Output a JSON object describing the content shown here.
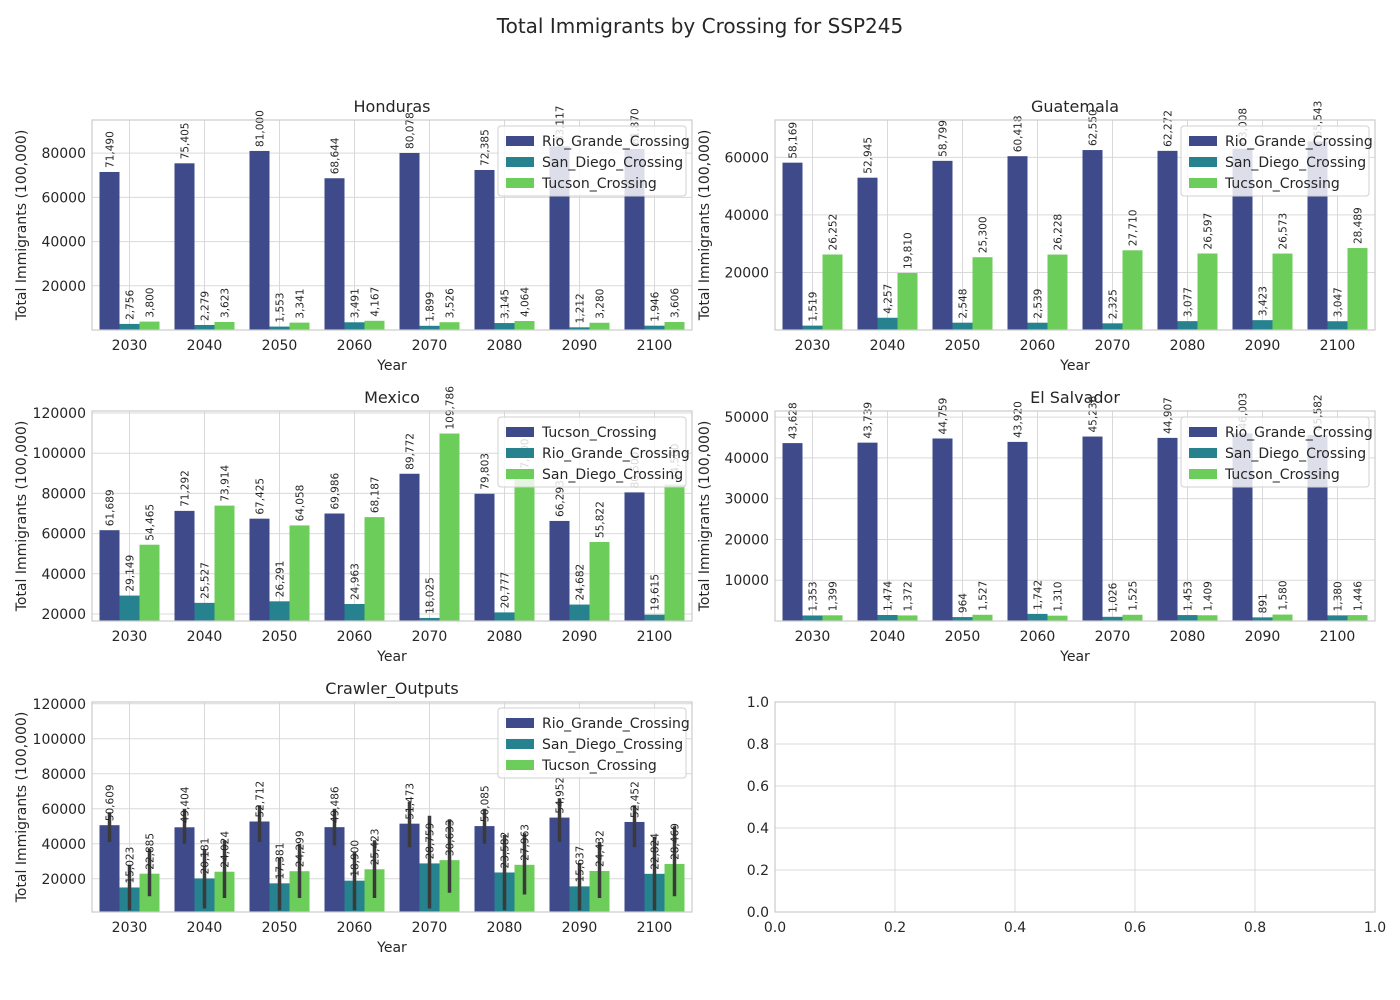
{
  "title": "Total Immigrants by Crossing for SSP245",
  "colors": {
    "navy": "#3e4a89",
    "teal": "#26828e",
    "green": "#6ccd5a",
    "grid": "#d9d9d9",
    "spine": "#cccccc",
    "text": "#262626",
    "errbar": "#3a3a3a"
  },
  "chart_data": [
    {
      "type": "bar",
      "title": "Honduras",
      "xlabel": "Year",
      "ylabel": "Total Immigrants (100,000)",
      "ylim": [
        0,
        95000
      ],
      "yticks": [
        20000,
        40000,
        60000,
        80000
      ],
      "legend": "top-right",
      "categories": [
        "2030",
        "2040",
        "2050",
        "2060",
        "2070",
        "2080",
        "2090",
        "2100"
      ],
      "series": [
        {
          "name": "Rio_Grande_Crossing",
          "color": "#3e4a89",
          "values": [
            71490,
            75405,
            81000,
            68644,
            80078,
            72385,
            83117,
            81870
          ],
          "labels": [
            "71,490",
            "75,405",
            "81,000",
            "68,644",
            "80,078",
            "72,385",
            "83,117",
            "81,870"
          ]
        },
        {
          "name": "San_Diego_Crossing",
          "color": "#26828e",
          "values": [
            2756,
            2279,
            1553,
            3491,
            1899,
            3145,
            1212,
            1946
          ],
          "labels": [
            "2,756",
            "2,279",
            "1,553",
            "3,491",
            "1,899",
            "3,145",
            "1,212",
            "1,946"
          ]
        },
        {
          "name": "Tucson_Crossing",
          "color": "#6ccd5a",
          "values": [
            3800,
            3623,
            3341,
            4167,
            3526,
            4064,
            3280,
            3606
          ],
          "labels": [
            "3,800",
            "3,623",
            "3,341",
            "4,167",
            "3,526",
            "4,064",
            "3,280",
            "3,606"
          ]
        }
      ]
    },
    {
      "type": "bar",
      "title": "Guatemala",
      "xlabel": "Year",
      "ylabel": "Total Immigrants (100,000)",
      "ylim": [
        0,
        73000
      ],
      "yticks": [
        20000,
        40000,
        60000
      ],
      "legend": "top-right",
      "categories": [
        "2030",
        "2040",
        "2050",
        "2060",
        "2070",
        "2080",
        "2090",
        "2100"
      ],
      "series": [
        {
          "name": "Rio_Grande_Crossing",
          "color": "#3e4a89",
          "values": [
            58169,
            52945,
            58799,
            60418,
            62550,
            62272,
            63008,
            65543
          ],
          "labels": [
            "58,169",
            "52,945",
            "58,799",
            "60,418",
            "62,550",
            "62,272",
            "63,008",
            "65,543"
          ]
        },
        {
          "name": "San_Diego_Crossing",
          "color": "#26828e",
          "values": [
            1519,
            4257,
            2548,
            2539,
            2325,
            3077,
            3423,
            3047
          ],
          "labels": [
            "1,519",
            "4,257",
            "2,548",
            "2,539",
            "2,325",
            "3,077",
            "3,423",
            "3,047"
          ]
        },
        {
          "name": "Tucson_Crossing",
          "color": "#6ccd5a",
          "values": [
            26252,
            19810,
            25300,
            26228,
            27710,
            26597,
            26573,
            28489
          ],
          "labels": [
            "26,252",
            "19,810",
            "25,300",
            "26,228",
            "27,710",
            "26,597",
            "26,573",
            "28,489"
          ]
        }
      ]
    },
    {
      "type": "bar",
      "title": "Mexico",
      "xlabel": "Year",
      "ylabel": "Total Immigrants (100,000)",
      "ylim": [
        16500,
        121000
      ],
      "yticks": [
        20000,
        40000,
        60000,
        80000,
        100000,
        120000
      ],
      "legend": "top-right",
      "categories": [
        "2030",
        "2040",
        "2050",
        "2060",
        "2070",
        "2080",
        "2090",
        "2100"
      ],
      "series": [
        {
          "name": "Tucson_Crossing",
          "color": "#3e4a89",
          "values": [
            61689,
            71292,
            67425,
            69986,
            89772,
            79803,
            66293,
            80500
          ],
          "labels": [
            "61,689",
            "71,292",
            "67,425",
            "69,986",
            "89,772",
            "79,803",
            "66,293",
            "80,500"
          ]
        },
        {
          "name": "Rio_Grande_Crossing",
          "color": "#26828e",
          "values": [
            29149,
            25527,
            26291,
            24963,
            18025,
            20777,
            24682,
            19615
          ],
          "labels": [
            "29,149",
            "25,527",
            "26,291",
            "24,963",
            "18,025",
            "20,777",
            "24,682",
            "19,615"
          ]
        },
        {
          "name": "San_Diego_Crossing",
          "color": "#6ccd5a",
          "values": [
            54465,
            73914,
            64058,
            68187,
            109786,
            87000,
            55822,
            84500
          ],
          "labels": [
            "54,465",
            "73,914",
            "64,058",
            "68,187",
            "109,786",
            "87,000",
            "55,822",
            "84,500"
          ]
        }
      ]
    },
    {
      "type": "bar",
      "title": "El Salvador",
      "xlabel": "Year",
      "ylabel": "Total Immigrants (100,000)",
      "ylim": [
        0,
        51500
      ],
      "yticks": [
        10000,
        20000,
        30000,
        40000,
        50000
      ],
      "legend": "top-right",
      "categories": [
        "2030",
        "2040",
        "2050",
        "2060",
        "2070",
        "2080",
        "2090",
        "2100"
      ],
      "series": [
        {
          "name": "Rio_Grande_Crossing",
          "color": "#3e4a89",
          "values": [
            43628,
            43739,
            44759,
            43920,
            45236,
            44907,
            46003,
            45582
          ],
          "labels": [
            "43,628",
            "43,739",
            "44,759",
            "43,920",
            "45,236",
            "44,907",
            "46,003",
            "45,582"
          ]
        },
        {
          "name": "San_Diego_Crossing",
          "color": "#26828e",
          "values": [
            1353,
            1474,
            964,
            1742,
            1026,
            1453,
            891,
            1380
          ],
          "labels": [
            "1,353",
            "1,474",
            "964",
            "1,742",
            "1,026",
            "1,453",
            "891",
            "1,380"
          ]
        },
        {
          "name": "Tucson_Crossing",
          "color": "#6ccd5a",
          "values": [
            1399,
            1372,
            1527,
            1310,
            1525,
            1409,
            1580,
            1446
          ],
          "labels": [
            "1,399",
            "1,372",
            "1,527",
            "1,310",
            "1,525",
            "1,409",
            "1,580",
            "1,446"
          ]
        }
      ]
    },
    {
      "type": "bar",
      "title": "Crawler_Outputs",
      "xlabel": "Year",
      "ylabel": "Total Immigrants (100,000)",
      "ylim": [
        1000,
        121000
      ],
      "yticks": [
        20000,
        40000,
        60000,
        80000,
        100000,
        120000
      ],
      "legend": "top-right",
      "error_bars": true,
      "categories": [
        "2030",
        "2040",
        "2050",
        "2060",
        "2070",
        "2080",
        "2090",
        "2100"
      ],
      "series": [
        {
          "name": "Rio_Grande_Crossing",
          "color": "#3e4a89",
          "values": [
            50609,
            49404,
            52712,
            49486,
            51473,
            50085,
            54952,
            52452
          ],
          "labels": [
            "50,609",
            "49,404",
            "52,712",
            "49,486",
            "51,473",
            "50,085",
            "54,952",
            "52,452"
          ],
          "err": [
            [
              41000,
              58000
            ],
            [
              40000,
              60000
            ],
            [
              41000,
              62000
            ],
            [
              39000,
              60000
            ],
            [
              38000,
              64000
            ],
            [
              40000,
              60000
            ],
            [
              41000,
              66000
            ],
            [
              38000,
              62000
            ]
          ]
        },
        {
          "name": "San_Diego_Crossing",
          "color": "#26828e",
          "values": [
            15023,
            20181,
            17381,
            18900,
            28759,
            23582,
            15637,
            22824
          ],
          "labels": [
            "15,023",
            "20,181",
            "17,381",
            "18,900",
            "28,759",
            "23,582",
            "15,637",
            "22,824"
          ],
          "err": [
            [
              2000,
              28000
            ],
            [
              3000,
              37000
            ],
            [
              2000,
              32000
            ],
            [
              2000,
              35000
            ],
            [
              3000,
              56000
            ],
            [
              2000,
              45000
            ],
            [
              2000,
              29000
            ],
            [
              2000,
              44000
            ]
          ]
        },
        {
          "name": "Tucson_Crossing",
          "color": "#6ccd5a",
          "values": [
            22885,
            24024,
            24299,
            25423,
            30633,
            27963,
            24432,
            28469
          ],
          "labels": [
            "22,885",
            "24,024",
            "24,299",
            "25,423",
            "30,633",
            "27,963",
            "24,432",
            "28,469"
          ],
          "err": [
            [
              10000,
              37000
            ],
            [
              9000,
              42000
            ],
            [
              9000,
              40000
            ],
            [
              9000,
              42000
            ],
            [
              12000,
              54000
            ],
            [
              11000,
              46000
            ],
            [
              9000,
              41000
            ],
            [
              10000,
              50000
            ]
          ]
        }
      ]
    },
    {
      "type": "scatter",
      "title": "",
      "xlabel": "",
      "ylabel": "",
      "xlim": [
        0,
        1
      ],
      "ylim": [
        0,
        1
      ],
      "xticks": [
        "0.0",
        "0.2",
        "0.4",
        "0.6",
        "0.8",
        "1.0"
      ],
      "yticks": [
        "0.0",
        "0.2",
        "0.4",
        "0.6",
        "0.8",
        "1.0"
      ],
      "series": []
    }
  ]
}
